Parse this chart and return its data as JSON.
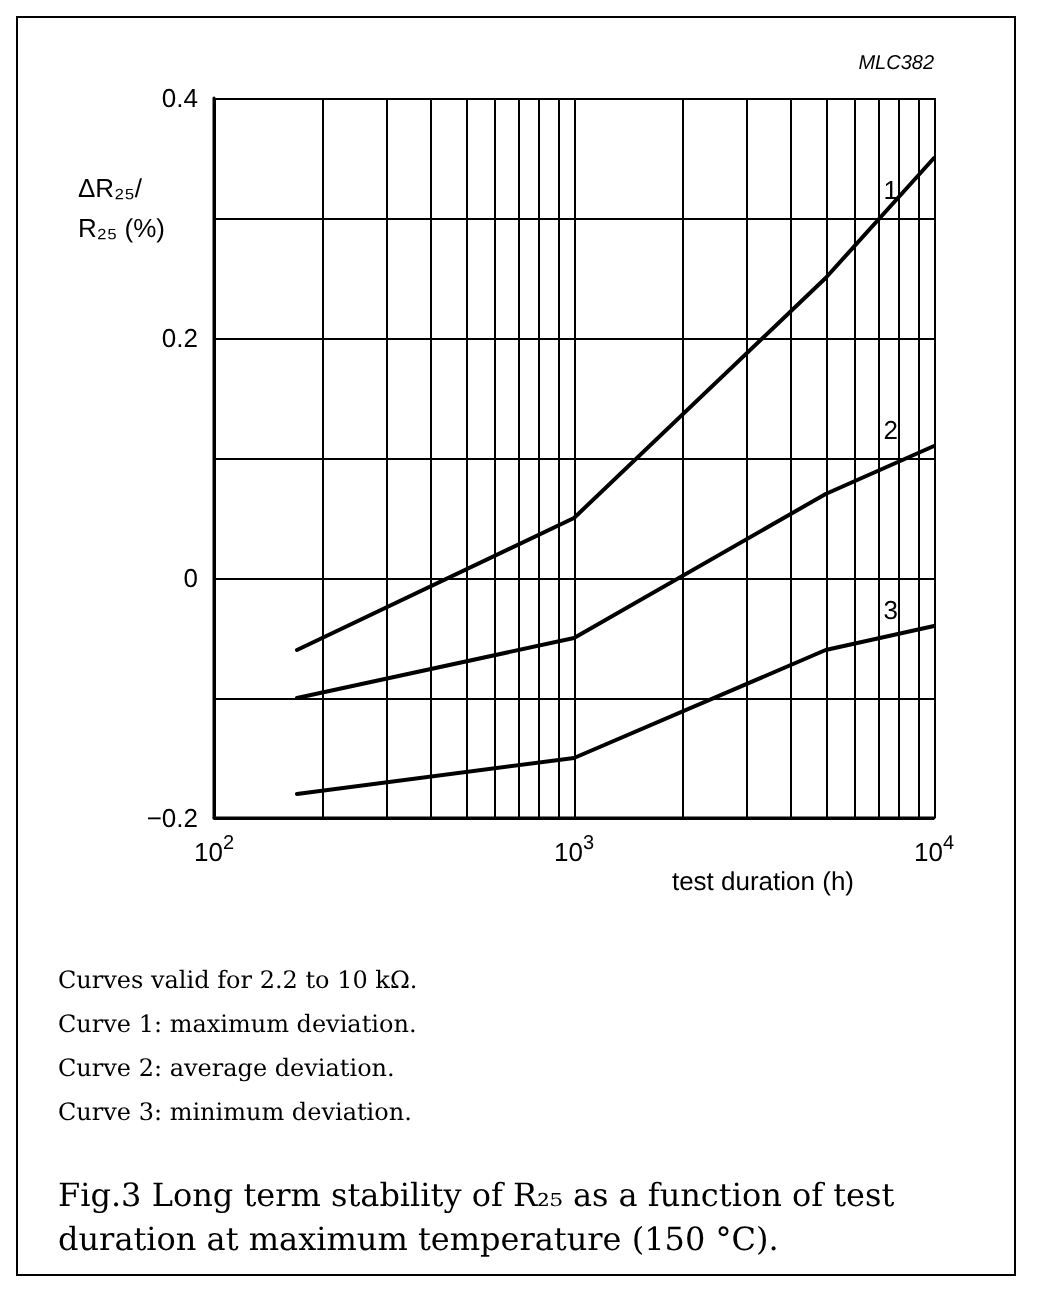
{
  "chart_data": {
    "type": "line",
    "title": "Fig.3 Long term stability of R₂₅ as a function of test duration at maximum temperature (150 °C).",
    "xlabel": "test duration (h)",
    "ylabel": "ΔR₂₅/R₂₅ (%)",
    "annotations": [
      "MLC382",
      "Curves valid for 2.2 to 10 kΩ.",
      "Curve 1: maximum deviation.",
      "Curve 2: average deviation.",
      "Curve 3: minimum deviation."
    ],
    "x": [
      170,
      1000,
      5000,
      10000
    ],
    "series": [
      {
        "name": "1",
        "color": "#000000",
        "values": [
          -0.06,
          0.05,
          0.25,
          0.35
        ]
      },
      {
        "name": "2",
        "color": "#000000",
        "values": [
          -0.1,
          -0.05,
          0.07,
          0.11
        ]
      },
      {
        "name": "3",
        "color": "#000000",
        "values": [
          -0.18,
          -0.15,
          -0.06,
          -0.04
        ]
      }
    ],
    "log": "x",
    "xlim": [
      100,
      10000
    ],
    "xticks": [
      {
        "value": 100,
        "label": "10$^{2}$"
      },
      {
        "value": 200,
        "label": null
      },
      {
        "value": 300,
        "label": null
      },
      {
        "value": 400,
        "label": null
      },
      {
        "value": 500,
        "label": null
      },
      {
        "value": 600,
        "label": null
      },
      {
        "value": 700,
        "label": null
      },
      {
        "value": 800,
        "label": null
      },
      {
        "value": 900,
        "label": null
      },
      {
        "value": 1000,
        "label": "10$^{3}$"
      },
      {
        "value": 2000,
        "label": null
      },
      {
        "value": 3000,
        "label": null
      },
      {
        "value": 4000,
        "label": null
      },
      {
        "value": 5000,
        "label": null
      },
      {
        "value": 6000,
        "label": null
      },
      {
        "value": 7000,
        "label": null
      },
      {
        "value": 8000,
        "label": null
      },
      {
        "value": 9000,
        "label": null
      },
      {
        "value": 10000,
        "label": "10$^{4}$"
      }
    ],
    "ylim": [
      -0.2,
      0.4
    ],
    "yticks": [
      {
        "value": -0.2,
        "label": "−0.2"
      },
      {
        "value": -0.1,
        "label": null
      },
      0,
      {
        "value": 0.1,
        "label": null
      },
      0.2,
      {
        "value": 0.3,
        "label": null
      },
      0.4
    ],
    "grid": true,
    "legend": false,
    "marker": "none",
    "line_style": "solid"
  }
}
